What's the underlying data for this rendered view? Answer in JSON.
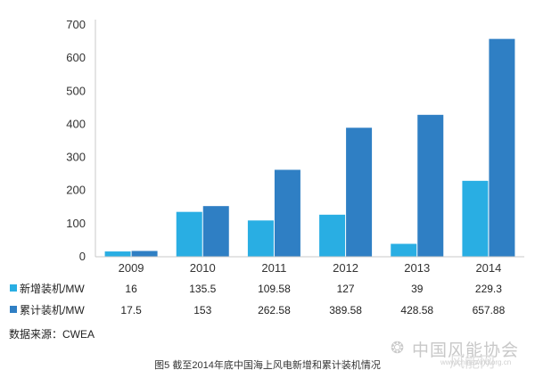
{
  "chart_data": {
    "type": "bar",
    "categories": [
      "2009",
      "2010",
      "2011",
      "2012",
      "2013",
      "2014"
    ],
    "series": [
      {
        "name": "新增装机/MW",
        "values": [
          16,
          135.5,
          109.58,
          127,
          39,
          229.3
        ],
        "value_labels": [
          "16",
          "135.5",
          "109.58",
          "127",
          "39",
          "229.3"
        ],
        "color": "#29aee3"
      },
      {
        "name": "累计装机/MW",
        "values": [
          17.5,
          153,
          262.58,
          389.58,
          428.58,
          657.88
        ],
        "value_labels": [
          "17.5",
          "153",
          "262.58",
          "389.58",
          "428.58",
          "657.88"
        ],
        "color": "#2f7fc4"
      }
    ],
    "ylim": [
      0,
      700
    ],
    "yticks": [
      "0",
      "100",
      "200",
      "300",
      "400",
      "500",
      "600",
      "700"
    ],
    "grid": false,
    "legend": "bottom-table"
  },
  "source_text": "数据来源：CWEA",
  "caption": "图5  截至2014年底中国海上风电新增和累计装机情况",
  "watermark": {
    "main": "中国风能协会",
    "ghost": "风能网",
    "sub": "www.chinawind.org.cn"
  }
}
